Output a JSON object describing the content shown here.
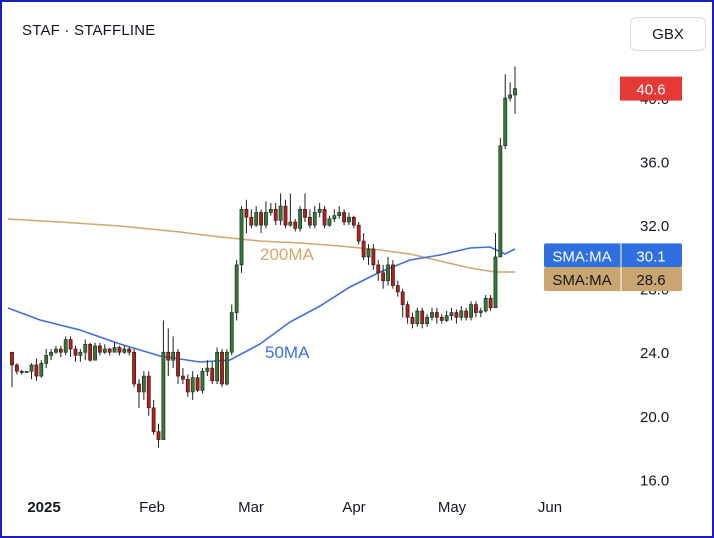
{
  "header": {
    "symbol": "STAF",
    "separator": "·",
    "name": "STAFFLINE",
    "currency": "GBX"
  },
  "colors": {
    "up": "#2e7d32",
    "down": "#b71c1c",
    "ma50": "#3f6fd8",
    "ma200": "#d1a66f",
    "last_price": "#e53935",
    "sma50_badge": "#2f6fe0",
    "sma200_badge": "#c9a56f"
  },
  "chart_data": {
    "type": "candlestick",
    "y_axis": {
      "ticks": [
        "16.0",
        "20.0",
        "24.0",
        "28.0",
        "32.0",
        "36.0",
        "40.0"
      ],
      "ylim": [
        15.2,
        42.4
      ]
    },
    "x_axis": {
      "labels": [
        "2025",
        "Feb",
        "Mar",
        "Apr",
        "May",
        "Jun"
      ]
    },
    "last_price": {
      "value": "40.6"
    },
    "indicators": [
      {
        "name": "50MA",
        "badge_label": "SMA:MA",
        "badge_value": "30.1"
      },
      {
        "name": "200MA",
        "badge_label": "SMA:MA",
        "badge_value": "28.6"
      }
    ],
    "candles": [
      [
        24.0,
        23.2,
        24.0,
        21.8
      ],
      [
        23.2,
        22.8,
        23.3,
        22.6
      ],
      [
        22.8,
        22.8,
        22.9,
        22.6
      ],
      [
        22.8,
        22.8,
        22.8,
        22.8
      ],
      [
        22.8,
        23.2,
        23.3,
        22.3
      ],
      [
        23.2,
        22.5,
        23.6,
        22.2
      ],
      [
        22.5,
        23.3,
        23.5,
        22.4
      ],
      [
        23.3,
        23.8,
        24.2,
        23.0
      ],
      [
        23.8,
        24.0,
        24.2,
        23.5
      ],
      [
        24.0,
        24.2,
        24.4,
        23.9
      ],
      [
        24.2,
        24.0,
        24.4,
        23.7
      ],
      [
        24.0,
        24.8,
        25.0,
        23.8
      ],
      [
        24.8,
        24.2,
        25.0,
        23.7
      ],
      [
        24.2,
        23.8,
        24.4,
        23.4
      ],
      [
        23.8,
        24.0,
        24.2,
        23.4
      ],
      [
        24.0,
        24.5,
        24.8,
        23.5
      ],
      [
        24.5,
        23.5,
        24.6,
        23.4
      ],
      [
        23.5,
        24.4,
        24.6,
        23.5
      ],
      [
        24.4,
        24.0,
        24.6,
        23.8
      ],
      [
        24.0,
        24.2,
        24.5,
        23.9
      ],
      [
        24.2,
        24.0,
        24.3,
        23.8
      ],
      [
        24.0,
        24.3,
        24.6,
        24.0
      ],
      [
        24.3,
        24.0,
        24.4,
        23.8
      ],
      [
        24.0,
        24.2,
        24.4,
        23.9
      ],
      [
        24.2,
        24.0,
        24.3,
        23.8
      ],
      [
        24.0,
        22.0,
        24.2,
        21.8
      ],
      [
        22.0,
        21.5,
        22.3,
        20.5
      ],
      [
        21.5,
        22.5,
        22.8,
        21.0
      ],
      [
        22.5,
        20.5,
        22.8,
        20.0
      ],
      [
        20.5,
        19.0,
        21.0,
        18.8
      ],
      [
        19.0,
        18.5,
        19.5,
        18.0
      ],
      [
        18.5,
        24.0,
        26.0,
        18.5
      ],
      [
        24.0,
        23.5,
        25.5,
        22.5
      ],
      [
        23.5,
        24.0,
        25.0,
        23.0
      ],
      [
        24.0,
        22.5,
        24.2,
        22.0
      ],
      [
        22.5,
        22.3,
        23.0,
        22.0
      ],
      [
        22.3,
        21.5,
        22.6,
        21.2
      ],
      [
        21.5,
        22.4,
        22.8,
        21.0
      ],
      [
        22.4,
        21.6,
        22.6,
        21.5
      ],
      [
        21.6,
        22.8,
        23.0,
        21.4
      ],
      [
        22.8,
        23.0,
        23.5,
        22.5
      ],
      [
        23.0,
        22.2,
        23.4,
        22.0
      ],
      [
        22.2,
        24.0,
        24.3,
        22.0
      ],
      [
        24.0,
        22.0,
        24.2,
        21.8
      ],
      [
        22.0,
        24.0,
        24.2,
        21.9
      ],
      [
        24.0,
        26.5,
        27.0,
        23.8
      ],
      [
        26.5,
        29.5,
        29.8,
        26.0
      ],
      [
        29.5,
        33.0,
        33.2,
        29.0
      ],
      [
        33.0,
        32.5,
        33.6,
        31.5
      ],
      [
        32.5,
        32.0,
        33.0,
        31.8
      ],
      [
        32.0,
        32.8,
        33.2,
        31.9
      ],
      [
        32.8,
        32.0,
        33.0,
        31.5
      ],
      [
        32.0,
        32.8,
        33.5,
        31.8
      ],
      [
        32.8,
        33.0,
        33.4,
        32.6
      ],
      [
        33.0,
        32.3,
        33.4,
        32.0
      ],
      [
        32.3,
        33.2,
        34.0,
        32.0
      ],
      [
        33.2,
        32.0,
        33.6,
        31.8
      ],
      [
        32.0,
        32.2,
        34.0,
        31.9
      ],
      [
        32.2,
        31.8,
        32.4,
        31.6
      ],
      [
        31.8,
        33.0,
        33.2,
        31.6
      ],
      [
        33.0,
        32.5,
        34.0,
        32.2
      ],
      [
        32.5,
        32.0,
        33.0,
        31.8
      ],
      [
        32.0,
        32.8,
        33.2,
        31.8
      ],
      [
        32.8,
        33.0,
        33.4,
        32.5
      ],
      [
        33.0,
        32.0,
        33.2,
        31.8
      ],
      [
        32.0,
        32.4,
        32.6,
        31.9
      ],
      [
        32.4,
        32.6,
        33.0,
        32.2
      ],
      [
        32.6,
        32.8,
        33.2,
        32.4
      ],
      [
        32.8,
        32.2,
        33.0,
        32.0
      ],
      [
        32.2,
        32.5,
        32.8,
        32.0
      ],
      [
        32.5,
        32.0,
        32.6,
        31.8
      ],
      [
        32.0,
        31.0,
        32.2,
        30.8
      ],
      [
        31.0,
        30.0,
        31.5,
        29.8
      ],
      [
        30.0,
        30.5,
        30.8,
        29.5
      ],
      [
        30.5,
        29.5,
        30.8,
        29.2
      ],
      [
        29.5,
        29.0,
        29.8,
        28.5
      ],
      [
        29.0,
        28.5,
        29.5,
        28.0
      ],
      [
        28.5,
        29.5,
        30.0,
        28.2
      ],
      [
        29.5,
        28.2,
        29.8,
        28.0
      ],
      [
        28.2,
        27.8,
        28.5,
        27.5
      ],
      [
        27.8,
        27.0,
        28.0,
        26.2
      ],
      [
        27.0,
        26.2,
        27.2,
        25.8
      ],
      [
        26.2,
        25.8,
        26.5,
        25.5
      ],
      [
        25.8,
        26.6,
        26.8,
        25.6
      ],
      [
        26.6,
        25.8,
        26.8,
        25.5
      ],
      [
        25.8,
        26.2,
        26.4,
        25.6
      ],
      [
        26.2,
        26.5,
        26.8,
        26.0
      ],
      [
        26.5,
        26.2,
        26.8,
        25.8
      ],
      [
        26.2,
        26.0,
        26.4,
        25.8
      ],
      [
        26.0,
        26.3,
        26.6,
        25.9
      ],
      [
        26.3,
        26.5,
        26.8,
        26.0
      ],
      [
        26.5,
        26.2,
        26.7,
        25.8
      ],
      [
        26.2,
        26.6,
        26.9,
        26.0
      ],
      [
        26.6,
        26.2,
        26.8,
        26.0
      ],
      [
        26.2,
        27.0,
        27.2,
        26.0
      ],
      [
        27.0,
        26.5,
        27.2,
        26.2
      ],
      [
        26.5,
        26.6,
        26.8,
        26.2
      ],
      [
        26.6,
        27.4,
        27.6,
        26.5
      ],
      [
        27.4,
        26.8,
        27.6,
        26.6
      ],
      [
        26.8,
        30.0,
        31.5,
        26.8
      ],
      [
        30.0,
        37.0,
        37.5,
        30.0
      ],
      [
        37.0,
        40.0,
        41.5,
        36.8
      ],
      [
        40.0,
        40.2,
        41.0,
        39.8
      ],
      [
        40.2,
        40.6,
        42.0,
        39.0
      ]
    ]
  }
}
